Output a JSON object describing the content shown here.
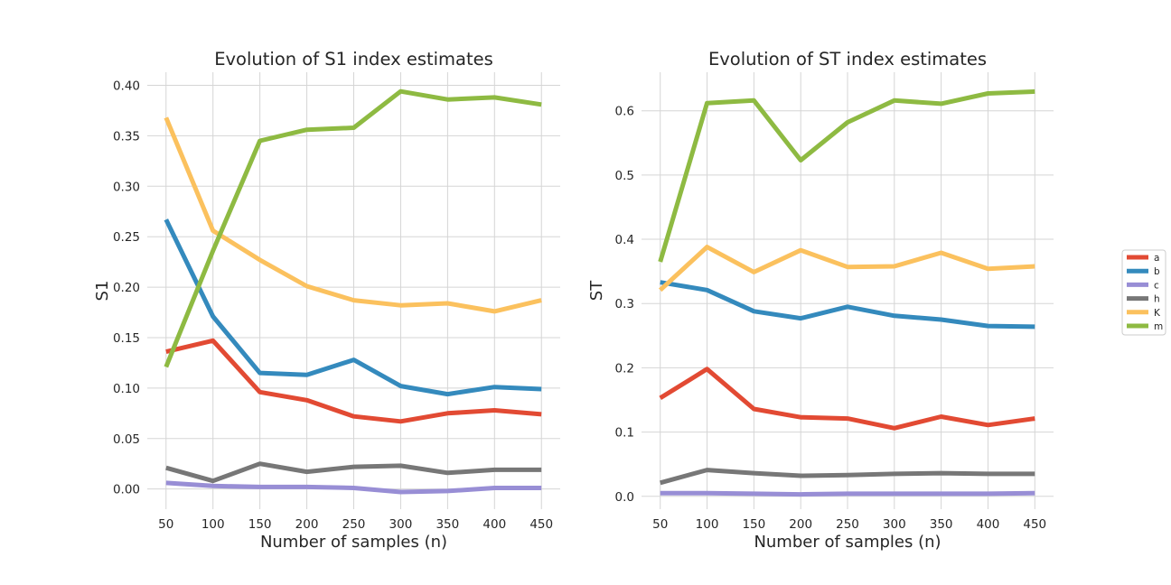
{
  "chart_data": [
    {
      "type": "line",
      "title": "Evolution of S1 index estimates",
      "xlabel": "Number of samples (n)",
      "ylabel": "S1",
      "x": [
        50,
        100,
        150,
        200,
        250,
        300,
        350,
        400,
        450
      ],
      "xticks": [
        "50",
        "100",
        "150",
        "200",
        "250",
        "300",
        "350",
        "400",
        "450"
      ],
      "ylim": [
        -0.02,
        0.413
      ],
      "yticks": [
        "0.00",
        "0.05",
        "0.10",
        "0.15",
        "0.20",
        "0.25",
        "0.30",
        "0.35",
        "0.40"
      ],
      "grid": true,
      "series": [
        {
          "name": "a",
          "values": [
            0.136,
            0.147,
            0.096,
            0.088,
            0.072,
            0.067,
            0.075,
            0.078,
            0.074
          ]
        },
        {
          "name": "b",
          "values": [
            0.267,
            0.171,
            0.115,
            0.113,
            0.128,
            0.102,
            0.094,
            0.101,
            0.099
          ]
        },
        {
          "name": "c",
          "values": [
            0.006,
            0.003,
            0.002,
            0.002,
            0.001,
            -0.003,
            -0.002,
            0.001,
            0.001
          ]
        },
        {
          "name": "h",
          "values": [
            0.021,
            0.008,
            0.025,
            0.017,
            0.022,
            0.023,
            0.016,
            0.019,
            0.019
          ]
        },
        {
          "name": "K",
          "values": [
            0.368,
            0.256,
            0.227,
            0.201,
            0.187,
            0.182,
            0.184,
            0.176,
            0.187
          ]
        },
        {
          "name": "m",
          "values": [
            0.121,
            0.236,
            0.345,
            0.356,
            0.358,
            0.394,
            0.386,
            0.388,
            0.381
          ]
        }
      ]
    },
    {
      "type": "line",
      "title": "Evolution of ST index estimates",
      "xlabel": "Number of samples (n)",
      "ylabel": "ST",
      "x": [
        50,
        100,
        150,
        200,
        250,
        300,
        350,
        400,
        450
      ],
      "xticks": [
        "50",
        "100",
        "150",
        "200",
        "250",
        "300",
        "350",
        "400",
        "450"
      ],
      "ylim": [
        -0.02,
        0.66
      ],
      "yticks": [
        "0.0",
        "0.1",
        "0.2",
        "0.3",
        "0.4",
        "0.5",
        "0.6"
      ],
      "grid": true,
      "series": [
        {
          "name": "a",
          "values": [
            0.153,
            0.198,
            0.136,
            0.123,
            0.121,
            0.106,
            0.124,
            0.111,
            0.121
          ]
        },
        {
          "name": "b",
          "values": [
            0.333,
            0.321,
            0.288,
            0.277,
            0.295,
            0.281,
            0.275,
            0.265,
            0.264
          ]
        },
        {
          "name": "c",
          "values": [
            0.005,
            0.005,
            0.004,
            0.003,
            0.004,
            0.004,
            0.004,
            0.004,
            0.005
          ]
        },
        {
          "name": "h",
          "values": [
            0.021,
            0.041,
            0.036,
            0.032,
            0.033,
            0.035,
            0.036,
            0.035,
            0.035
          ]
        },
        {
          "name": "K",
          "values": [
            0.321,
            0.388,
            0.349,
            0.383,
            0.357,
            0.358,
            0.379,
            0.354,
            0.358
          ]
        },
        {
          "name": "m",
          "values": [
            0.365,
            0.612,
            0.616,
            0.523,
            0.582,
            0.616,
            0.611,
            0.627,
            0.63
          ]
        }
      ]
    }
  ],
  "legend": {
    "placement": "right",
    "entries": [
      "a",
      "b",
      "c",
      "h",
      "K",
      "m"
    ]
  },
  "colors": {
    "a": "#e24a33",
    "b": "#348abd",
    "c": "#988ed5",
    "h": "#777777",
    "K": "#fbc15e",
    "m": "#8eba42"
  }
}
